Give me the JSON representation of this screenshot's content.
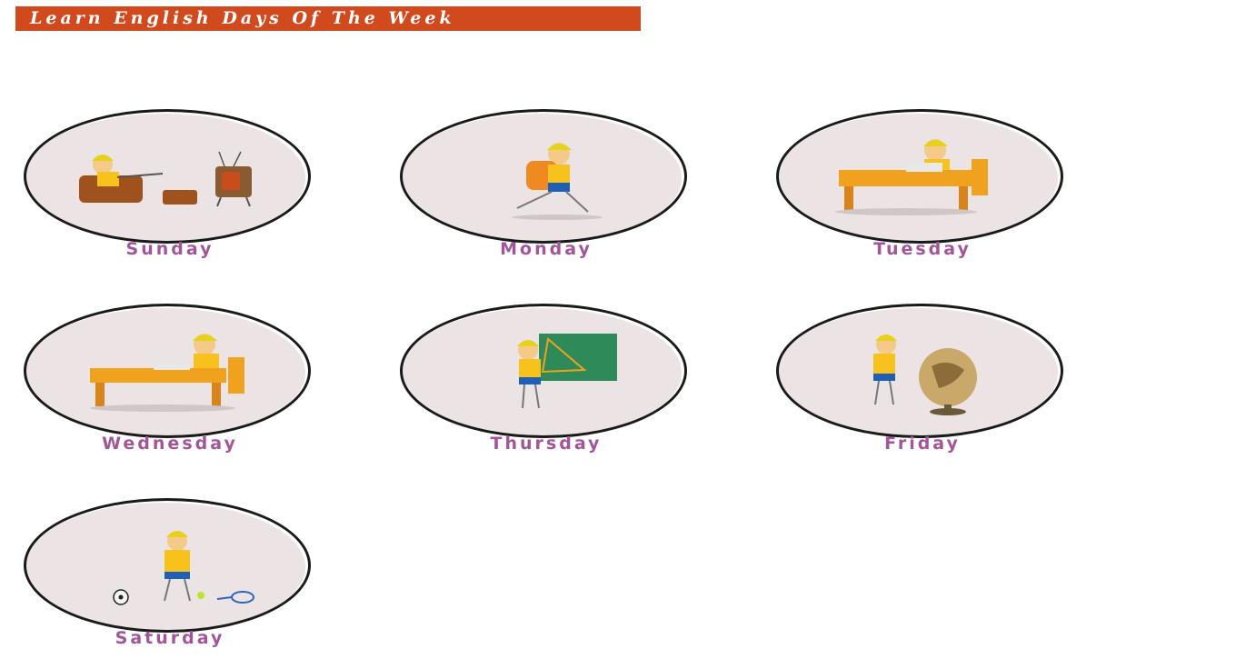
{
  "header": {
    "title": "Learn English Days Of The Week"
  },
  "days": [
    {
      "label": "Sunday",
      "illustration": "boy-watching-tv"
    },
    {
      "label": "Monday",
      "illustration": "boy-with-backpack"
    },
    {
      "label": "Tuesday",
      "illustration": "boy-reading-at-desk"
    },
    {
      "label": "Wednesday",
      "illustration": "boy-writing-at-desk"
    },
    {
      "label": "Thursday",
      "illustration": "boy-at-blackboard"
    },
    {
      "label": "Friday",
      "illustration": "boy-with-globe"
    },
    {
      "label": "Saturday",
      "illustration": "boy-playing-sports"
    }
  ],
  "colors": {
    "banner": "#d04a1d",
    "label": "#a3559a",
    "circle": "#ece4e4"
  }
}
